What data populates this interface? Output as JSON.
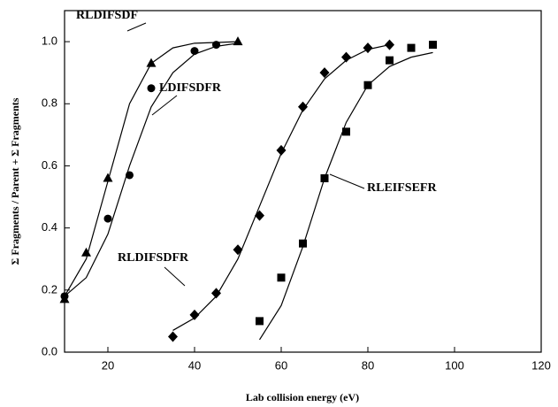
{
  "chart_data": {
    "type": "scatter",
    "x_label": "Lab collision energy (eV)",
    "y_label": "Σ Fragments / Parent + Σ Fragments",
    "xlim": [
      10,
      120
    ],
    "xticks": [
      20,
      40,
      60,
      80,
      100,
      120
    ],
    "ylim": [
      0,
      1.1
    ],
    "yticks": [
      {
        "value": 0,
        "label": "0.0"
      },
      0.2,
      0.4,
      0.6,
      0.8,
      {
        "value": 1,
        "label": "1.0"
      }
    ],
    "series": [
      {
        "name": "RLDIFSDF",
        "color": "#000000",
        "marker": "triangle",
        "x": [
          10,
          15,
          20,
          30,
          50
        ],
        "values": [
          0.17,
          0.32,
          0.56,
          0.93,
          1.0
        ],
        "fit_x": [
          10,
          15,
          20,
          25,
          30,
          35,
          40,
          50
        ],
        "fit_y": [
          0.18,
          0.3,
          0.55,
          0.8,
          0.93,
          0.98,
          0.995,
          1.0
        ]
      },
      {
        "name": "LDIFSDFR",
        "color": "#000000",
        "marker": "circle",
        "x": [
          10,
          20,
          25,
          30,
          40,
          45
        ],
        "values": [
          0.18,
          0.43,
          0.57,
          0.85,
          0.97,
          0.99
        ],
        "fit_x": [
          10,
          15,
          20,
          25,
          30,
          35,
          40,
          45,
          50
        ],
        "fit_y": [
          0.18,
          0.24,
          0.38,
          0.6,
          0.79,
          0.9,
          0.96,
          0.985,
          0.995
        ]
      },
      {
        "name": "RLDIFSDFR",
        "color": "#000000",
        "marker": "diamond",
        "x": [
          35,
          40,
          45,
          50,
          55,
          60,
          65,
          70,
          75,
          80,
          85
        ],
        "values": [
          0.05,
          0.12,
          0.19,
          0.33,
          0.44,
          0.65,
          0.79,
          0.9,
          0.95,
          0.98,
          0.99
        ],
        "fit_x": [
          35,
          40,
          45,
          50,
          55,
          60,
          65,
          70,
          75,
          80,
          85
        ],
        "fit_y": [
          0.07,
          0.11,
          0.18,
          0.3,
          0.47,
          0.64,
          0.78,
          0.88,
          0.94,
          0.975,
          0.99
        ]
      },
      {
        "name": "RLEIFSEFR",
        "color": "#000000",
        "marker": "square",
        "x": [
          55,
          60,
          65,
          70,
          75,
          80,
          85,
          90,
          95
        ],
        "values": [
          0.1,
          0.24,
          0.35,
          0.56,
          0.71,
          0.86,
          0.94,
          0.98,
          0.99
        ],
        "fit_x": [
          55,
          60,
          65,
          70,
          75,
          80,
          85,
          90,
          95
        ],
        "fit_y": [
          0.04,
          0.15,
          0.34,
          0.56,
          0.74,
          0.86,
          0.92,
          0.95,
          0.965
        ]
      }
    ]
  }
}
